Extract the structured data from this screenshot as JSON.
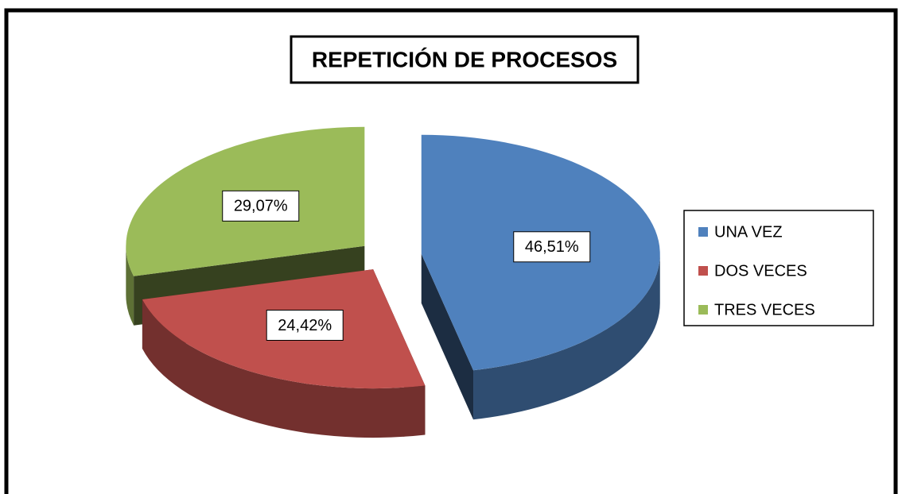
{
  "chart_data": {
    "type": "pie",
    "title": "REPETICIÓN DE PROCESOS",
    "categories": [
      "UNA VEZ",
      "DOS VECES",
      "TRES VECES"
    ],
    "values": [
      46.51,
      24.42,
      29.07
    ],
    "value_labels": [
      "46,51%",
      "24,42%",
      "29,07%"
    ],
    "colors": [
      "#4f81bd",
      "#c0504d",
      "#9bbb59"
    ],
    "legend": "right"
  }
}
